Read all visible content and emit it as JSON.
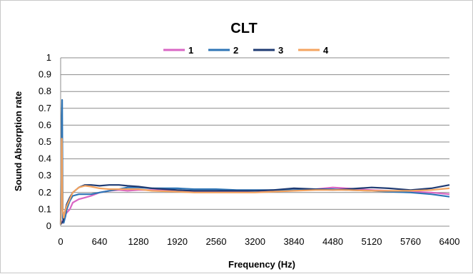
{
  "chart_data": {
    "type": "line",
    "title": "CLT",
    "xlabel": "Frequency  (Hz)",
    "ylabel": "Sound Absorption rate",
    "xlim": [
      0,
      6400
    ],
    "ylim": [
      0,
      1
    ],
    "xticks": [
      "0",
      "640",
      "1280",
      "1920",
      "2560",
      "3200",
      "3840",
      "4480",
      "5120",
      "5760",
      "6400"
    ],
    "yticks": [
      "0",
      "0.1",
      "0.2",
      "0.3",
      "0.4",
      "0.5",
      "0.6",
      "0.7",
      "0.8",
      "0.9",
      "1"
    ],
    "grid": true,
    "legend_position": "top",
    "series": [
      {
        "name": "1",
        "color": "#d966c4",
        "points": [
          [
            0,
            0.01
          ],
          [
            20,
            0.03
          ],
          [
            40,
            0.02
          ],
          [
            60,
            0.06
          ],
          [
            80,
            0.07
          ],
          [
            100,
            0.08
          ],
          [
            150,
            0.1
          ],
          [
            200,
            0.14
          ],
          [
            300,
            0.16
          ],
          [
            400,
            0.17
          ],
          [
            500,
            0.18
          ],
          [
            640,
            0.2
          ],
          [
            800,
            0.21
          ],
          [
            960,
            0.215
          ],
          [
            1100,
            0.21
          ],
          [
            1280,
            0.215
          ],
          [
            1500,
            0.215
          ],
          [
            1920,
            0.21
          ],
          [
            2200,
            0.205
          ],
          [
            2560,
            0.205
          ],
          [
            2900,
            0.205
          ],
          [
            3200,
            0.21
          ],
          [
            3500,
            0.21
          ],
          [
            3840,
            0.215
          ],
          [
            4200,
            0.22
          ],
          [
            4480,
            0.23
          ],
          [
            4700,
            0.225
          ],
          [
            5120,
            0.215
          ],
          [
            5400,
            0.21
          ],
          [
            5760,
            0.205
          ],
          [
            6100,
            0.2
          ],
          [
            6400,
            0.19
          ]
        ]
      },
      {
        "name": "2",
        "color": "#2e75b6",
        "points": [
          [
            0,
            0.01
          ],
          [
            15,
            0.6
          ],
          [
            25,
            0.75
          ],
          [
            35,
            0.05
          ],
          [
            50,
            0.02
          ],
          [
            80,
            0.06
          ],
          [
            100,
            0.1
          ],
          [
            150,
            0.15
          ],
          [
            200,
            0.18
          ],
          [
            300,
            0.19
          ],
          [
            400,
            0.19
          ],
          [
            500,
            0.19
          ],
          [
            640,
            0.2
          ],
          [
            800,
            0.21
          ],
          [
            960,
            0.22
          ],
          [
            1100,
            0.23
          ],
          [
            1280,
            0.23
          ],
          [
            1500,
            0.225
          ],
          [
            1920,
            0.225
          ],
          [
            2200,
            0.22
          ],
          [
            2560,
            0.22
          ],
          [
            2900,
            0.215
          ],
          [
            3200,
            0.215
          ],
          [
            3500,
            0.215
          ],
          [
            3840,
            0.215
          ],
          [
            4200,
            0.22
          ],
          [
            4480,
            0.22
          ],
          [
            4700,
            0.215
          ],
          [
            5120,
            0.21
          ],
          [
            5400,
            0.205
          ],
          [
            5760,
            0.2
          ],
          [
            6100,
            0.19
          ],
          [
            6400,
            0.175
          ]
        ]
      },
      {
        "name": "3",
        "color": "#1f3b73",
        "points": [
          [
            0,
            0.01
          ],
          [
            20,
            0.02
          ],
          [
            40,
            0.03
          ],
          [
            60,
            0.07
          ],
          [
            80,
            0.1
          ],
          [
            100,
            0.13
          ],
          [
            150,
            0.17
          ],
          [
            200,
            0.2
          ],
          [
            300,
            0.23
          ],
          [
            400,
            0.245
          ],
          [
            500,
            0.245
          ],
          [
            640,
            0.24
          ],
          [
            800,
            0.245
          ],
          [
            960,
            0.245
          ],
          [
            1100,
            0.24
          ],
          [
            1280,
            0.235
          ],
          [
            1500,
            0.225
          ],
          [
            1920,
            0.215
          ],
          [
            2200,
            0.21
          ],
          [
            2560,
            0.21
          ],
          [
            2900,
            0.21
          ],
          [
            3200,
            0.21
          ],
          [
            3500,
            0.215
          ],
          [
            3840,
            0.225
          ],
          [
            4200,
            0.22
          ],
          [
            4480,
            0.215
          ],
          [
            4700,
            0.22
          ],
          [
            5120,
            0.23
          ],
          [
            5400,
            0.225
          ],
          [
            5760,
            0.215
          ],
          [
            6100,
            0.225
          ],
          [
            6400,
            0.245
          ]
        ]
      },
      {
        "name": "4",
        "color": "#f4a460",
        "points": [
          [
            0,
            0.01
          ],
          [
            10,
            0.3
          ],
          [
            20,
            0.52
          ],
          [
            30,
            0.1
          ],
          [
            50,
            0.05
          ],
          [
            80,
            0.1
          ],
          [
            100,
            0.12
          ],
          [
            150,
            0.16
          ],
          [
            200,
            0.2
          ],
          [
            300,
            0.23
          ],
          [
            400,
            0.24
          ],
          [
            500,
            0.235
          ],
          [
            640,
            0.225
          ],
          [
            800,
            0.22
          ],
          [
            960,
            0.22
          ],
          [
            1100,
            0.22
          ],
          [
            1280,
            0.22
          ],
          [
            1500,
            0.21
          ],
          [
            1920,
            0.205
          ],
          [
            2200,
            0.2
          ],
          [
            2560,
            0.2
          ],
          [
            2900,
            0.2
          ],
          [
            3200,
            0.2
          ],
          [
            3500,
            0.205
          ],
          [
            3840,
            0.21
          ],
          [
            4200,
            0.215
          ],
          [
            4480,
            0.215
          ],
          [
            4700,
            0.215
          ],
          [
            5120,
            0.21
          ],
          [
            5400,
            0.21
          ],
          [
            5760,
            0.21
          ],
          [
            6100,
            0.215
          ],
          [
            6400,
            0.225
          ]
        ]
      }
    ]
  }
}
